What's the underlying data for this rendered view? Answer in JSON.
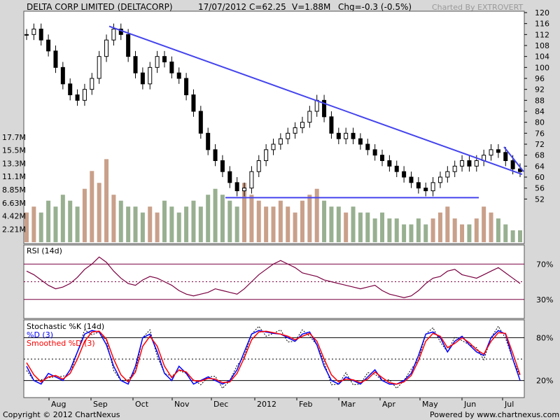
{
  "header": {
    "title": "DELTA CORP LIMITED (DELTACORP)",
    "date": "17/07/2012",
    "close": "C=62.25",
    "volume": "V=1.88M",
    "change": "Chg=-0.3 (-0.5%)",
    "credit": "Charted By EXTROVERT"
  },
  "footer": {
    "copyright": "Copyright © 2012 ChartNexus",
    "powered": "Powered by www.chartnexus.com"
  },
  "colors": {
    "background": "#d8d8d8",
    "plot": "#ffffff",
    "price": "#000000",
    "trendline": "#4444ee",
    "volume_up": "#c9a08a",
    "volume_down": "#98b090",
    "rsi": "#7a0040",
    "stoch_k": "#000000",
    "stoch_d": "#0000ff",
    "stoch_smoothed": "#ff0000"
  },
  "chart_data": [
    {
      "type": "candlestick",
      "title": "DELTA CORP LIMITED (DELTACORP)",
      "x_labels": [
        "Aug",
        "Sep",
        "Oct",
        "Nov",
        "Dec",
        "2012",
        "Feb",
        "Mar",
        "Apr",
        "May",
        "Jun",
        "Jul"
      ],
      "y_ticks": [
        52,
        56,
        60,
        64,
        68,
        72,
        76,
        80,
        84,
        88,
        92,
        96,
        100,
        104,
        108,
        112,
        116,
        120
      ],
      "ylim": [
        48,
        120
      ],
      "closes": [
        112,
        114,
        110,
        106,
        100,
        94,
        90,
        88,
        92,
        96,
        104,
        110,
        114,
        112,
        104,
        98,
        94,
        100,
        104,
        102,
        98,
        96,
        90,
        84,
        76,
        70,
        66,
        62,
        58,
        55,
        56,
        62,
        66,
        70,
        72,
        74,
        76,
        78,
        80,
        84,
        88,
        82,
        76,
        74,
        76,
        74,
        72,
        70,
        68,
        66,
        64,
        62,
        60,
        58,
        56,
        55,
        58,
        60,
        62,
        64,
        66,
        64,
        66,
        68,
        70,
        69,
        66,
        63,
        62
      ],
      "trendlines": [
        {
          "from": [
            "Sep",
            115
          ],
          "to": [
            "Jul",
            61
          ]
        },
        {
          "from": [
            "Dec",
            52.5
          ],
          "to": [
            "Jun",
            52.5
          ]
        },
        {
          "from": [
            "Jul",
            71
          ],
          "to": [
            "Jul",
            62
          ]
        }
      ]
    },
    {
      "type": "bar",
      "title": "Volume",
      "y_ticks": [
        "2.21M",
        "4.42M",
        "6.63M",
        "8.85M",
        "11.1M",
        "13.3M",
        "15.5M",
        "17.7M"
      ],
      "ylim": [
        0,
        17.7
      ],
      "values": [
        5,
        6,
        5,
        7,
        6,
        8,
        7,
        6,
        9,
        12,
        10,
        14,
        8,
        7,
        6,
        6,
        5,
        6,
        5,
        7,
        6,
        5,
        6,
        7,
        6,
        8,
        9,
        8,
        7,
        6,
        10,
        8,
        7,
        6,
        6,
        7,
        6,
        5,
        7,
        8,
        9,
        7,
        6,
        6,
        5,
        6,
        5,
        5,
        4,
        5,
        4,
        4,
        3,
        3,
        4,
        3,
        4,
        5,
        6,
        4,
        3,
        3,
        4,
        6,
        5,
        4,
        3,
        2,
        2
      ]
    },
    {
      "type": "line",
      "title": "RSI (14d)",
      "y_ticks": [
        "70%",
        "30%"
      ],
      "ylim": [
        10,
        90
      ],
      "values": [
        62,
        58,
        52,
        46,
        42,
        44,
        48,
        55,
        64,
        70,
        78,
        72,
        62,
        54,
        48,
        46,
        52,
        56,
        54,
        50,
        46,
        40,
        36,
        34,
        36,
        38,
        42,
        40,
        38,
        36,
        42,
        50,
        58,
        64,
        70,
        74,
        70,
        66,
        60,
        58,
        56,
        52,
        50,
        48,
        46,
        44,
        42,
        44,
        46,
        40,
        36,
        34,
        32,
        34,
        40,
        48,
        54,
        56,
        62,
        64,
        58,
        56,
        54,
        58,
        62,
        66,
        60,
        54,
        48
      ]
    },
    {
      "type": "line",
      "title": "Stochastic %K (14d)",
      "legend": [
        "%D (3)",
        "Smoothed %D (3)"
      ],
      "y_ticks": [
        "80%",
        "20%"
      ],
      "ylim": [
        0,
        100
      ],
      "series": [
        {
          "name": "%D (3)",
          "values": [
            40,
            20,
            15,
            30,
            25,
            20,
            35,
            60,
            85,
            90,
            88,
            70,
            40,
            20,
            15,
            40,
            80,
            85,
            60,
            30,
            20,
            40,
            30,
            15,
            20,
            25,
            20,
            15,
            20,
            35,
            60,
            85,
            90,
            88,
            86,
            85,
            80,
            75,
            85,
            88,
            70,
            40,
            20,
            15,
            25,
            20,
            15,
            25,
            35,
            20,
            15,
            15,
            20,
            30,
            55,
            85,
            88,
            80,
            60,
            75,
            82,
            70,
            60,
            55,
            80,
            90,
            85,
            50,
            20
          ]
        },
        {
          "name": "Smoothed %D (3)",
          "values": [
            45,
            28,
            18,
            25,
            27,
            22,
            30,
            50,
            75,
            88,
            89,
            78,
            50,
            28,
            18,
            32,
            68,
            82,
            68,
            40,
            24,
            35,
            32,
            20,
            19,
            23,
            22,
            17,
            18,
            30,
            52,
            77,
            88,
            89,
            87,
            85,
            82,
            77,
            82,
            86,
            75,
            50,
            28,
            18,
            22,
            21,
            17,
            22,
            32,
            24,
            17,
            15,
            18,
            27,
            48,
            75,
            86,
            82,
            66,
            72,
            80,
            73,
            63,
            57,
            75,
            87,
            86,
            58,
            28
          ]
        }
      ]
    }
  ]
}
